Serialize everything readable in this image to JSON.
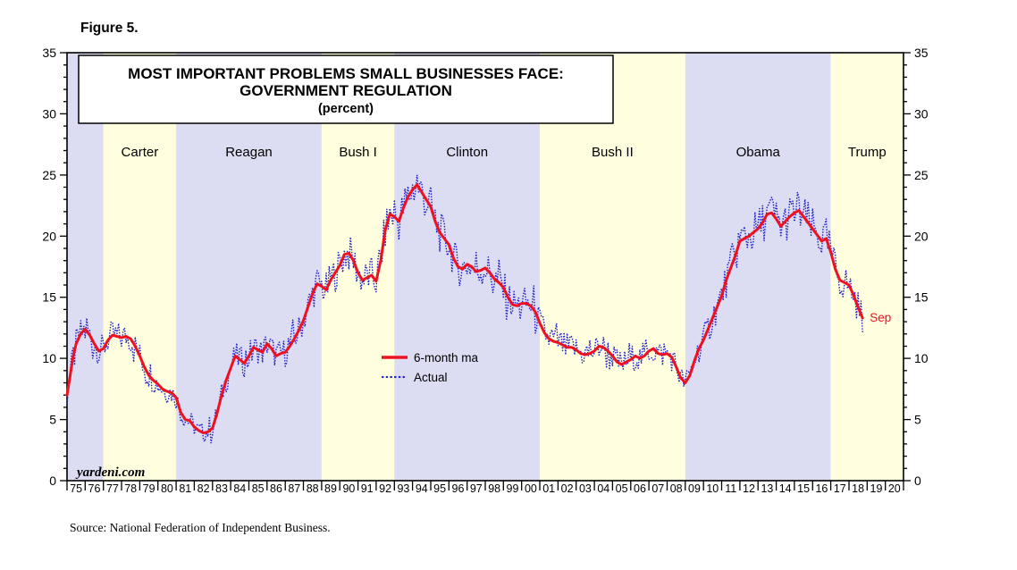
{
  "figure_label": "Figure 5.",
  "title": {
    "line1": "MOST IMPORTANT PROBLEMS SMALL BUSINESSES FACE:",
    "line2": "GOVERNMENT REGULATION",
    "line3": "(percent)"
  },
  "legend": {
    "ma": "6-month ma",
    "actual": "Actual"
  },
  "watermark": "yardeni.com",
  "source": "Source: National Federation of Independent Business.",
  "colors": {
    "ma_line": "#ee1122",
    "actual_line": "#2222cc",
    "band_blue": "#dcdcf3",
    "band_yellow": "#ffffe0",
    "axis": "#000000"
  },
  "chart_data": {
    "type": "line",
    "title": "MOST IMPORTANT PROBLEMS SMALL BUSINESSES FACE: GOVERNMENT REGULATION (percent)",
    "x_domain": [
      1975,
      2021
    ],
    "y_domain": [
      0,
      35
    ],
    "y_ticks": [
      0,
      5,
      10,
      15,
      20,
      25,
      30,
      35
    ],
    "grid": false,
    "legend_position": "inside-center-left",
    "last_point_label": "Sep",
    "x_tick_labels": [
      "75",
      "76",
      "77",
      "78",
      "79",
      "80",
      "81",
      "82",
      "83",
      "84",
      "85",
      "86",
      "87",
      "88",
      "89",
      "90",
      "91",
      "92",
      "93",
      "94",
      "95",
      "96",
      "97",
      "98",
      "99",
      "00",
      "01",
      "02",
      "03",
      "04",
      "05",
      "06",
      "07",
      "08",
      "09",
      "10",
      "11",
      "12",
      "13",
      "14",
      "15",
      "16",
      "17",
      "18",
      "19",
      "20"
    ],
    "eras": [
      {
        "label": "",
        "start": 1975,
        "end": 1977,
        "color": "blue"
      },
      {
        "label": "Carter",
        "start": 1977,
        "end": 1981,
        "color": "yellow"
      },
      {
        "label": "Reagan",
        "start": 1981,
        "end": 1989,
        "color": "blue"
      },
      {
        "label": "Bush I",
        "start": 1989,
        "end": 1993,
        "color": "yellow"
      },
      {
        "label": "Clinton",
        "start": 1993,
        "end": 2001,
        "color": "blue"
      },
      {
        "label": "Bush II",
        "start": 2001,
        "end": 2009,
        "color": "yellow"
      },
      {
        "label": "Obama",
        "start": 2009,
        "end": 2017,
        "color": "blue"
      },
      {
        "label": "Trump",
        "start": 2017,
        "end": 2021,
        "color": "yellow"
      }
    ],
    "series": [
      {
        "name": "6-month ma",
        "style": "solid",
        "points": [
          [
            1975.0,
            7.0
          ],
          [
            1975.17,
            8.6
          ],
          [
            1975.33,
            10.1
          ],
          [
            1975.5,
            11.2
          ],
          [
            1975.75,
            12.0
          ],
          [
            1976.0,
            12.4
          ],
          [
            1976.25,
            11.9
          ],
          [
            1976.5,
            11.2
          ],
          [
            1976.75,
            10.6
          ],
          [
            1977.0,
            10.8
          ],
          [
            1977.25,
            11.5
          ],
          [
            1977.5,
            11.9
          ],
          [
            1977.75,
            11.8
          ],
          [
            1978.0,
            11.7
          ],
          [
            1978.25,
            11.8
          ],
          [
            1978.5,
            11.6
          ],
          [
            1978.75,
            11.0
          ],
          [
            1979.0,
            10.2
          ],
          [
            1979.25,
            9.3
          ],
          [
            1979.5,
            8.6
          ],
          [
            1979.75,
            8.2
          ],
          [
            1980.0,
            7.9
          ],
          [
            1980.25,
            7.5
          ],
          [
            1980.5,
            7.3
          ],
          [
            1980.75,
            7.2
          ],
          [
            1981.0,
            6.8
          ],
          [
            1981.25,
            5.6
          ],
          [
            1981.5,
            5.0
          ],
          [
            1981.75,
            4.9
          ],
          [
            1982.0,
            4.4
          ],
          [
            1982.25,
            4.1
          ],
          [
            1982.5,
            3.9
          ],
          [
            1982.75,
            4.0
          ],
          [
            1983.0,
            4.3
          ],
          [
            1983.25,
            5.5
          ],
          [
            1983.5,
            7.0
          ],
          [
            1983.75,
            8.2
          ],
          [
            1984.0,
            9.2
          ],
          [
            1984.25,
            10.2
          ],
          [
            1984.5,
            9.9
          ],
          [
            1984.75,
            9.6
          ],
          [
            1985.0,
            10.2
          ],
          [
            1985.25,
            10.9
          ],
          [
            1985.5,
            10.7
          ],
          [
            1985.75,
            10.5
          ],
          [
            1986.0,
            11.2
          ],
          [
            1986.25,
            10.8
          ],
          [
            1986.5,
            10.2
          ],
          [
            1986.75,
            10.4
          ],
          [
            1987.0,
            10.5
          ],
          [
            1987.25,
            11.0
          ],
          [
            1987.5,
            11.6
          ],
          [
            1987.75,
            12.3
          ],
          [
            1988.0,
            13.1
          ],
          [
            1988.25,
            14.2
          ],
          [
            1988.5,
            15.3
          ],
          [
            1988.75,
            16.1
          ],
          [
            1989.0,
            15.9
          ],
          [
            1989.25,
            15.6
          ],
          [
            1989.5,
            16.4
          ],
          [
            1989.75,
            17.0
          ],
          [
            1990.0,
            17.6
          ],
          [
            1990.25,
            18.5
          ],
          [
            1990.5,
            18.6
          ],
          [
            1990.75,
            18.0
          ],
          [
            1991.0,
            17.0
          ],
          [
            1991.25,
            16.4
          ],
          [
            1991.5,
            16.6
          ],
          [
            1991.75,
            16.8
          ],
          [
            1992.0,
            16.3
          ],
          [
            1992.25,
            18.0
          ],
          [
            1992.5,
            20.5
          ],
          [
            1992.75,
            21.8
          ],
          [
            1993.0,
            21.6
          ],
          [
            1993.25,
            21.2
          ],
          [
            1993.5,
            22.3
          ],
          [
            1993.75,
            23.2
          ],
          [
            1994.0,
            23.8
          ],
          [
            1994.25,
            24.2
          ],
          [
            1994.5,
            23.6
          ],
          [
            1994.75,
            23.0
          ],
          [
            1995.0,
            22.4
          ],
          [
            1995.25,
            21.2
          ],
          [
            1995.5,
            20.3
          ],
          [
            1995.75,
            19.8
          ],
          [
            1996.0,
            19.3
          ],
          [
            1996.25,
            18.2
          ],
          [
            1996.5,
            17.5
          ],
          [
            1996.75,
            17.3
          ],
          [
            1997.0,
            17.7
          ],
          [
            1997.25,
            17.5
          ],
          [
            1997.5,
            17.1
          ],
          [
            1997.75,
            17.2
          ],
          [
            1998.0,
            17.4
          ],
          [
            1998.25,
            17.0
          ],
          [
            1998.5,
            16.5
          ],
          [
            1998.75,
            16.2
          ],
          [
            1999.0,
            15.8
          ],
          [
            1999.25,
            15.0
          ],
          [
            1999.5,
            14.4
          ],
          [
            1999.75,
            14.3
          ],
          [
            2000.0,
            14.5
          ],
          [
            2000.25,
            14.5
          ],
          [
            2000.5,
            14.3
          ],
          [
            2000.75,
            13.8
          ],
          [
            2001.0,
            12.9
          ],
          [
            2001.25,
            12.1
          ],
          [
            2001.5,
            11.6
          ],
          [
            2001.75,
            11.4
          ],
          [
            2002.0,
            11.3
          ],
          [
            2002.25,
            11.1
          ],
          [
            2002.5,
            10.9
          ],
          [
            2002.75,
            10.9
          ],
          [
            2003.0,
            10.7
          ],
          [
            2003.25,
            10.4
          ],
          [
            2003.5,
            10.3
          ],
          [
            2003.75,
            10.4
          ],
          [
            2004.0,
            10.6
          ],
          [
            2004.25,
            11.0
          ],
          [
            2004.5,
            10.9
          ],
          [
            2004.75,
            10.6
          ],
          [
            2005.0,
            10.2
          ],
          [
            2005.25,
            9.7
          ],
          [
            2005.5,
            9.5
          ],
          [
            2005.75,
            9.7
          ],
          [
            2006.0,
            9.9
          ],
          [
            2006.25,
            10.2
          ],
          [
            2006.5,
            10.0
          ],
          [
            2006.75,
            10.2
          ],
          [
            2007.0,
            10.6
          ],
          [
            2007.25,
            10.8
          ],
          [
            2007.5,
            10.4
          ],
          [
            2007.75,
            10.3
          ],
          [
            2008.0,
            10.4
          ],
          [
            2008.25,
            10.1
          ],
          [
            2008.5,
            9.3
          ],
          [
            2008.75,
            8.4
          ],
          [
            2009.0,
            8.0
          ],
          [
            2009.25,
            8.6
          ],
          [
            2009.5,
            9.8
          ],
          [
            2009.75,
            10.8
          ],
          [
            2010.0,
            11.5
          ],
          [
            2010.25,
            12.4
          ],
          [
            2010.5,
            13.3
          ],
          [
            2010.75,
            14.2
          ],
          [
            2011.0,
            15.1
          ],
          [
            2011.25,
            16.4
          ],
          [
            2011.5,
            17.4
          ],
          [
            2011.75,
            18.4
          ],
          [
            2012.0,
            19.6
          ],
          [
            2012.25,
            19.8
          ],
          [
            2012.5,
            20.0
          ],
          [
            2012.75,
            20.3
          ],
          [
            2013.0,
            20.6
          ],
          [
            2013.25,
            21.1
          ],
          [
            2013.5,
            21.8
          ],
          [
            2013.75,
            21.9
          ],
          [
            2014.0,
            21.4
          ],
          [
            2014.25,
            20.8
          ],
          [
            2014.5,
            21.2
          ],
          [
            2014.75,
            21.6
          ],
          [
            2015.0,
            21.9
          ],
          [
            2015.25,
            22.1
          ],
          [
            2015.5,
            21.6
          ],
          [
            2015.75,
            21.1
          ],
          [
            2016.0,
            20.6
          ],
          [
            2016.25,
            20.1
          ],
          [
            2016.5,
            19.6
          ],
          [
            2016.75,
            19.8
          ],
          [
            2017.0,
            18.7
          ],
          [
            2017.25,
            17.3
          ],
          [
            2017.5,
            16.4
          ],
          [
            2017.75,
            16.2
          ],
          [
            2018.0,
            16.0
          ],
          [
            2018.25,
            15.2
          ],
          [
            2018.5,
            14.2
          ],
          [
            2018.75,
            13.3
          ]
        ]
      },
      {
        "name": "Actual",
        "style": "dotted",
        "derived": {
          "from": "6-month ma",
          "samples_per_year": 12,
          "noise_base": 0.6,
          "noise_scale": 0.055,
          "spike_chance": 0.1,
          "spike_mult": 1.6,
          "seed": 7,
          "end": 2018.75
        }
      }
    ]
  }
}
